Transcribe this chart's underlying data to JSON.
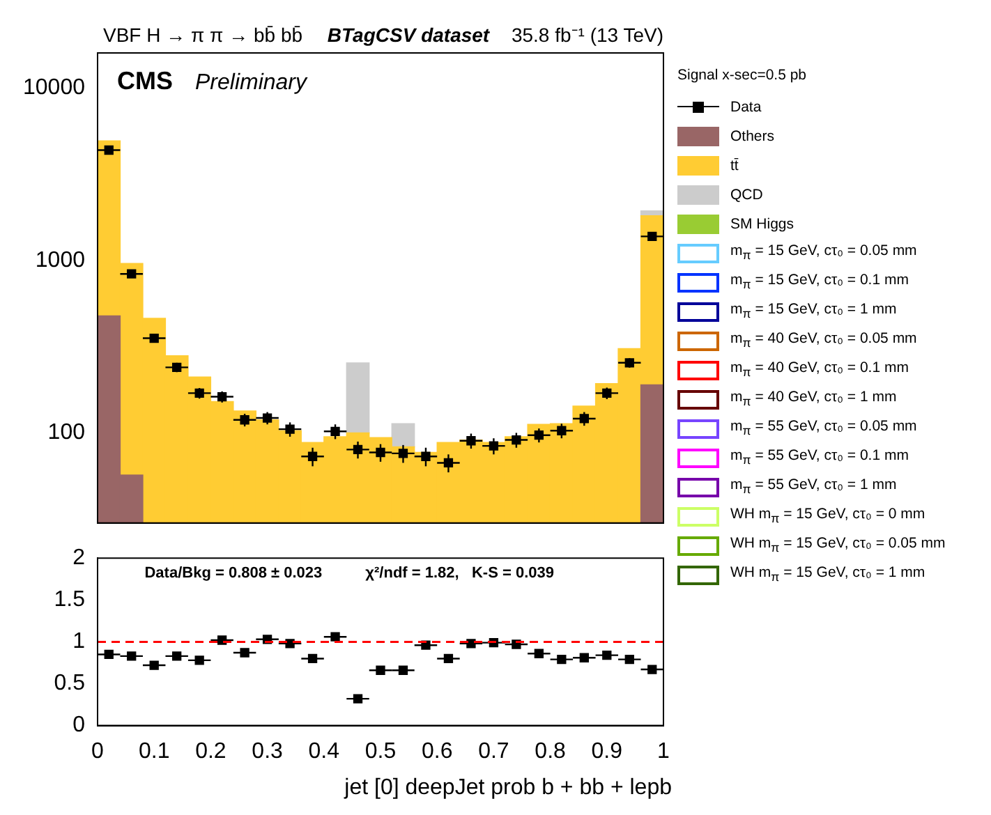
{
  "chart_data": [
    {
      "type": "bar",
      "title": "BTagCSV dataset",
      "annotations": [
        "VBF H → π π → bb̄ bb̄",
        "35.8 fb⁻¹ (13 TeV)",
        "CMS",
        "Preliminary"
      ],
      "legend_title": "Signal x-sec=0.5 pb",
      "legend": "right",
      "stacked": true,
      "log": "y",
      "tick_labels": "y",
      "x": [
        0.02,
        0.06,
        0.1,
        0.14,
        0.18,
        0.22,
        0.26,
        0.3,
        0.34,
        0.38,
        0.42,
        0.46,
        0.5,
        0.54,
        0.58,
        0.62,
        0.66,
        0.7,
        0.74,
        0.78,
        0.82,
        0.86,
        0.9,
        0.94,
        0.98
      ],
      "xlim": [
        0,
        1
      ],
      "xticks": [
        0,
        0.1,
        0.2,
        0.3,
        0.4,
        0.5,
        0.6,
        0.7,
        0.8,
        0.9,
        1
      ],
      "ylim": [
        30,
        16000
      ],
      "yticks": [
        100,
        1000,
        10000
      ],
      "series": [
        {
          "name": "Data",
          "type": "scatter",
          "marker": "square",
          "color": "#000000",
          "x": [
            0.02,
            0.06,
            0.1,
            0.14,
            0.18,
            0.22,
            0.26,
            0.3,
            0.34,
            0.38,
            0.42,
            0.46,
            0.5,
            0.54,
            0.58,
            0.62,
            0.66,
            0.7,
            0.74,
            0.78,
            0.82,
            0.86,
            0.9,
            0.94,
            0.98
          ],
          "values": [
            4370,
            836,
            354,
            240,
            170,
            162,
            119,
            122,
            105,
            73,
            102,
            80,
            77,
            76,
            73,
            67,
            90,
            84,
            91,
            97,
            103,
            121,
            170,
            255,
            1380
          ],
          "errors": [
            150,
            40,
            20,
            15,
            12,
            12,
            10,
            10,
            10,
            9,
            10,
            9,
            9,
            9,
            9,
            8,
            9,
            9,
            9,
            9,
            10,
            11,
            13,
            16,
            50
          ],
          "xerrors": [
            0.02,
            0.02,
            0.02,
            0.02,
            0.02,
            0.02,
            0.02,
            0.02,
            0.02,
            0.02,
            0.02,
            0.02,
            0.02,
            0.02,
            0.02,
            0.02,
            0.02,
            0.02,
            0.02,
            0.02,
            0.02,
            0.02,
            0.02,
            0.02,
            0.02
          ]
        },
        {
          "name": "Others",
          "color": "#996666",
          "values": [
            477,
            57,
            null,
            null,
            null,
            null,
            null,
            null,
            null,
            null,
            null,
            null,
            null,
            null,
            null,
            null,
            null,
            null,
            null,
            null,
            null,
            null,
            null,
            null,
            190
          ]
        },
        {
          "name": "tt̄",
          "color": "#ffcc33",
          "values": [
            4473,
            905,
            462,
            280,
            211,
            152,
            134,
            119,
            103,
            88,
            95,
            100,
            94,
            83,
            77,
            88,
            91,
            88,
            95,
            112,
            113,
            143,
            193,
            308,
            1630
          ]
        },
        {
          "name": "QCD",
          "color": "#cccccc",
          "values": [
            null,
            null,
            null,
            null,
            null,
            null,
            null,
            null,
            null,
            null,
            null,
            155,
            null,
            30,
            null,
            null,
            null,
            null,
            null,
            null,
            null,
            null,
            null,
            null,
            120
          ]
        },
        {
          "name": "SM Higgs",
          "color": "#99cc33",
          "values": [
            null,
            null,
            null,
            null,
            null,
            null,
            null,
            null,
            null,
            null,
            null,
            null,
            null,
            null,
            null,
            null,
            null,
            null,
            null,
            null,
            null,
            null,
            null,
            null,
            null
          ]
        },
        {
          "name": "m$_{π}$ = 15 GeV, cτ₀ = 0.05 mm",
          "type": "step",
          "color": "#66ccff",
          "values": [
            null,
            null,
            null,
            null,
            null,
            null,
            null,
            null,
            null,
            null,
            null,
            null,
            null,
            null,
            null,
            null,
            null,
            null,
            null,
            null,
            null,
            null,
            null,
            null,
            null
          ]
        },
        {
          "name": "m$_{π}$ = 15 GeV, cτ₀ = 0.1 mm",
          "type": "step",
          "color": "#0033ff",
          "values": [
            null,
            null,
            null,
            null,
            null,
            null,
            null,
            null,
            null,
            null,
            null,
            null,
            null,
            null,
            null,
            null,
            null,
            null,
            null,
            null,
            null,
            null,
            null,
            null,
            null
          ]
        },
        {
          "name": "m$_{π}$ = 15 GeV, cτ₀ = 1 mm",
          "type": "step",
          "color": "#000099",
          "values": [
            null,
            null,
            null,
            null,
            null,
            null,
            null,
            null,
            null,
            null,
            null,
            null,
            null,
            null,
            null,
            null,
            null,
            null,
            null,
            null,
            null,
            null,
            null,
            null,
            null
          ]
        },
        {
          "name": "m$_{π}$ = 40 GeV, cτ₀ = 0.05 mm",
          "type": "step",
          "color": "#cc6600",
          "values": [
            null,
            null,
            null,
            null,
            null,
            null,
            null,
            null,
            null,
            null,
            null,
            null,
            null,
            null,
            null,
            null,
            null,
            null,
            null,
            null,
            null,
            null,
            null,
            null,
            null
          ]
        },
        {
          "name": "m$_{π}$ = 40 GeV, cτ₀ = 0.1 mm",
          "type": "step",
          "color": "#ff0000",
          "values": [
            null,
            null,
            null,
            null,
            null,
            null,
            null,
            null,
            null,
            null,
            null,
            null,
            null,
            null,
            null,
            null,
            null,
            null,
            null,
            null,
            null,
            null,
            null,
            null,
            null
          ]
        },
        {
          "name": "m$_{π}$ = 40 GeV, cτ₀ = 1 mm",
          "type": "step",
          "color": "#660000",
          "values": [
            null,
            null,
            null,
            null,
            null,
            null,
            null,
            null,
            null,
            null,
            null,
            null,
            null,
            null,
            null,
            null,
            null,
            null,
            null,
            null,
            null,
            null,
            null,
            null,
            null
          ]
        },
        {
          "name": "m$_{π}$ = 55 GeV, cτ₀ = 0.05 mm",
          "type": "step",
          "color": "#7744ff",
          "values": [
            null,
            null,
            null,
            null,
            null,
            null,
            null,
            null,
            null,
            null,
            null,
            null,
            null,
            null,
            null,
            null,
            null,
            null,
            null,
            null,
            null,
            null,
            null,
            null,
            null
          ]
        },
        {
          "name": "m$_{π}$ = 55 GeV, cτ₀ = 0.1 mm",
          "type": "step",
          "color": "#ff00ff",
          "values": [
            null,
            null,
            null,
            null,
            null,
            null,
            null,
            null,
            null,
            null,
            null,
            null,
            null,
            null,
            null,
            null,
            null,
            null,
            null,
            null,
            null,
            null,
            null,
            null,
            null
          ]
        },
        {
          "name": "m$_{π}$ = 55 GeV, cτ₀ = 1 mm",
          "type": "step",
          "color": "#7700aa",
          "values": [
            null,
            null,
            null,
            null,
            null,
            null,
            null,
            null,
            null,
            null,
            null,
            null,
            null,
            null,
            null,
            null,
            null,
            null,
            null,
            null,
            null,
            null,
            null,
            null,
            null
          ]
        },
        {
          "name": "WH m$_{π}$ = 15 GeV, cτ₀ = 0 mm",
          "type": "step",
          "color": "#ccff66",
          "values": [
            null,
            null,
            null,
            null,
            null,
            null,
            null,
            null,
            null,
            null,
            null,
            null,
            null,
            null,
            null,
            null,
            null,
            null,
            null,
            null,
            null,
            null,
            null,
            null,
            null
          ]
        },
        {
          "name": "WH m$_{π}$ = 15 GeV, cτ₀ = 0.05 mm",
          "type": "step",
          "color": "#66aa00",
          "values": [
            null,
            null,
            null,
            null,
            null,
            null,
            null,
            null,
            null,
            null,
            null,
            null,
            null,
            null,
            null,
            null,
            null,
            null,
            null,
            null,
            null,
            null,
            null,
            null,
            null
          ]
        },
        {
          "name": "WH m$_{π}$ = 15 GeV, cτ₀ = 1 mm",
          "type": "step",
          "color": "#336600",
          "values": [
            null,
            null,
            null,
            null,
            null,
            null,
            null,
            null,
            null,
            null,
            null,
            null,
            null,
            null,
            null,
            null,
            null,
            null,
            null,
            null,
            null,
            null,
            null,
            null,
            null
          ]
        }
      ]
    },
    {
      "type": "scatter",
      "marker": "square",
      "color": "#000000",
      "xlabel": "jet [0] deepJet prob b + bb + lepb",
      "annotations": [
        "Data/Bkg = 0.808 ± 0.023",
        "χ²/ndf = 1.82,   K-S = 0.039"
      ],
      "xlim": [
        0,
        1
      ],
      "xticks": [
        0,
        0.1,
        0.2,
        0.3,
        0.4,
        0.5,
        0.6,
        0.7,
        0.8,
        0.9,
        1
      ],
      "ylim": [
        0,
        2
      ],
      "yticks": [
        0,
        0.5,
        1,
        1.5,
        2
      ],
      "x": [
        0.02,
        0.06,
        0.1,
        0.14,
        0.18,
        0.22,
        0.26,
        0.3,
        0.34,
        0.38,
        0.42,
        0.46,
        0.5,
        0.54,
        0.58,
        0.62,
        0.66,
        0.7,
        0.74,
        0.78,
        0.82,
        0.86,
        0.9,
        0.94,
        0.98
      ],
      "values": [
        0.85,
        0.83,
        0.72,
        0.83,
        0.78,
        1.02,
        0.87,
        1.03,
        0.98,
        0.8,
        1.06,
        0.32,
        0.66,
        0.66,
        0.96,
        0.8,
        0.98,
        0.99,
        0.97,
        0.86,
        0.79,
        0.81,
        0.84,
        0.79,
        0.67
      ],
      "xerrors": [
        0.02,
        0.02,
        0.02,
        0.02,
        0.02,
        0.02,
        0.02,
        0.02,
        0.02,
        0.02,
        0.02,
        0.02,
        0.02,
        0.02,
        0.02,
        0.02,
        0.02,
        0.02,
        0.02,
        0.02,
        0.02,
        0.02,
        0.02,
        0.02,
        0.02
      ],
      "ref_lines": [
        {
          "axis": "y",
          "value": 1,
          "color": "#ff0000",
          "line_style": "dashed"
        }
      ]
    }
  ]
}
